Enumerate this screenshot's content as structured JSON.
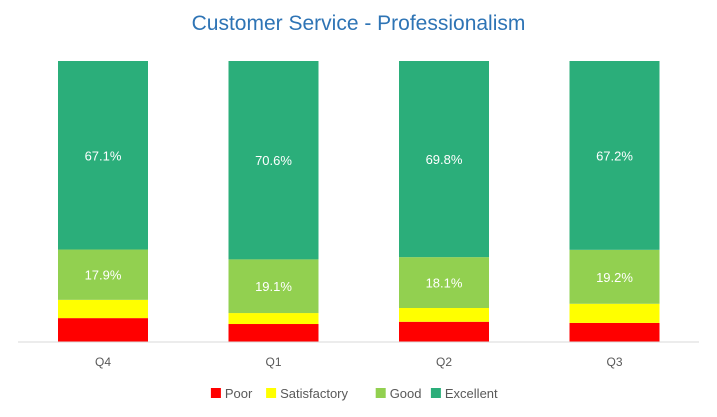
{
  "chart_data": {
    "type": "bar",
    "stacked": true,
    "percent_stacked": true,
    "title": "Customer Service - Professionalism",
    "xlabel": "",
    "ylabel": "",
    "categories": [
      "Q4",
      "Q1",
      "Q2",
      "Q3"
    ],
    "ylim": [
      0,
      100
    ],
    "grid": false,
    "legend_position": "bottom",
    "series": [
      {
        "name": "Poor",
        "color": "#FF0000",
        "values": [
          8.5,
          6.4,
          7.2,
          6.8
        ],
        "labels": [
          "",
          "",
          "",
          ""
        ]
      },
      {
        "name": "Satisfactory",
        "color": "#FFFF00",
        "values": [
          6.5,
          3.9,
          4.9,
          6.8
        ],
        "labels": [
          "",
          "",
          "",
          ""
        ]
      },
      {
        "name": "Good",
        "color": "#92D050",
        "values": [
          17.9,
          19.1,
          18.1,
          19.2
        ],
        "labels": [
          "17.9%",
          "19.1%",
          "18.1%",
          "19.2%"
        ]
      },
      {
        "name": "Excellent",
        "color": "#2BAE7A",
        "values": [
          67.1,
          70.6,
          69.8,
          67.2
        ],
        "labels": [
          "67.1%",
          "70.6%",
          "69.8%",
          "67.2%"
        ]
      }
    ]
  }
}
